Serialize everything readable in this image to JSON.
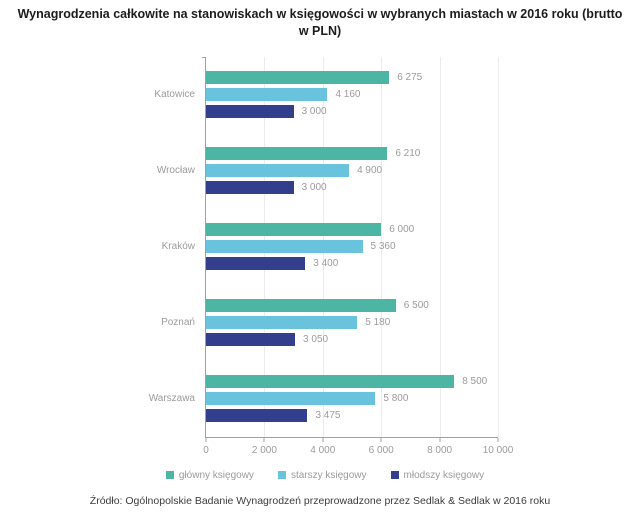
{
  "title": "Wynagrodzenia całkowite na stanowiskach w księgowości w wybranych miastach w 2016 roku (brutto w PLN)",
  "source": "Źródło: Ogólnopolskie Badanie Wynagrodzeń przeprowadzone przez Sedlak & Sedlak w 2016 roku",
  "colors": {
    "chief_accountant": "#4CB5A3",
    "senior_accountant": "#69C3DC",
    "junior_accountant": "#333E8D",
    "grid": "#EBEBEB",
    "axis": "#A0A0A0",
    "label_gray": "#9B9B9B"
  },
  "chart_data": {
    "type": "bar",
    "orientation": "horizontal",
    "title": "Wynagrodzenia całkowite na stanowiskach w księgowości w wybranych miastach w 2016 roku (brutto w PLN)",
    "categories": [
      "Katowice",
      "Wrocław",
      "Kraków",
      "Poznań",
      "Warszawa"
    ],
    "series": [
      {
        "name": "główny księgowy",
        "color": "#4CB5A3",
        "values": [
          6275,
          6210,
          6000,
          6500,
          8500
        ]
      },
      {
        "name": "starszy księgowy",
        "color": "#69C3DC",
        "values": [
          4160,
          4900,
          5360,
          5180,
          5800
        ]
      },
      {
        "name": "młodszy księgowy",
        "color": "#333E8D",
        "values": [
          3000,
          3000,
          3400,
          3050,
          3475
        ]
      }
    ],
    "xlim": [
      0,
      10000
    ],
    "x_ticks": [
      {
        "value": 0,
        "label": "0"
      },
      {
        "value": 2000,
        "label": "2 000"
      },
      {
        "value": 4000,
        "label": "4 000"
      },
      {
        "value": 6000,
        "label": "6 000"
      },
      {
        "value": 8000,
        "label": "8 000"
      },
      {
        "value": 10000,
        "label": "10 000"
      }
    ],
    "grid": "vertical",
    "legend_position": "bottom",
    "value_label_format": "space-thousands"
  }
}
